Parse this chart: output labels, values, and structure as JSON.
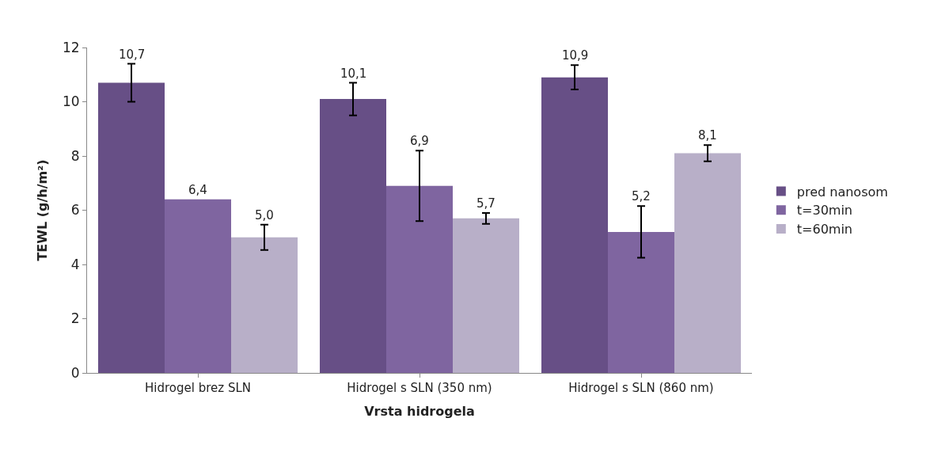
{
  "chart_data": {
    "type": "bar",
    "xlabel": "Vrsta hidrogela",
    "ylabel": "TEWL (g/h/m²)",
    "categories": [
      "Hidrogel brez SLN",
      "Hidrogel s SLN (350 nm)",
      "Hidrogel s SLN (860 nm)"
    ],
    "series": [
      {
        "name": "pred nanosom",
        "color": "#674f86",
        "values": [
          10.7,
          10.1,
          10.9
        ],
        "errors": [
          0.7,
          0.6,
          0.45
        ],
        "value_labels": [
          "10,7",
          "10,1",
          "10,9"
        ]
      },
      {
        "name": "t=30min",
        "color": "#7f65a0",
        "values": [
          6.4,
          6.9,
          5.2
        ],
        "errors": [
          null,
          1.3,
          0.95
        ],
        "value_labels": [
          "6,4",
          "6,9",
          "5,2"
        ]
      },
      {
        "name": "t=60min",
        "color": "#b8afc8",
        "values": [
          5.0,
          5.7,
          8.1
        ],
        "errors": [
          0.47,
          0.2,
          0.3
        ],
        "value_labels": [
          "5,0",
          "5,7",
          "8,1"
        ]
      }
    ],
    "ylim": [
      0,
      12
    ],
    "yticks": [
      0,
      2,
      4,
      6,
      8,
      10,
      12
    ],
    "legend": "right"
  }
}
